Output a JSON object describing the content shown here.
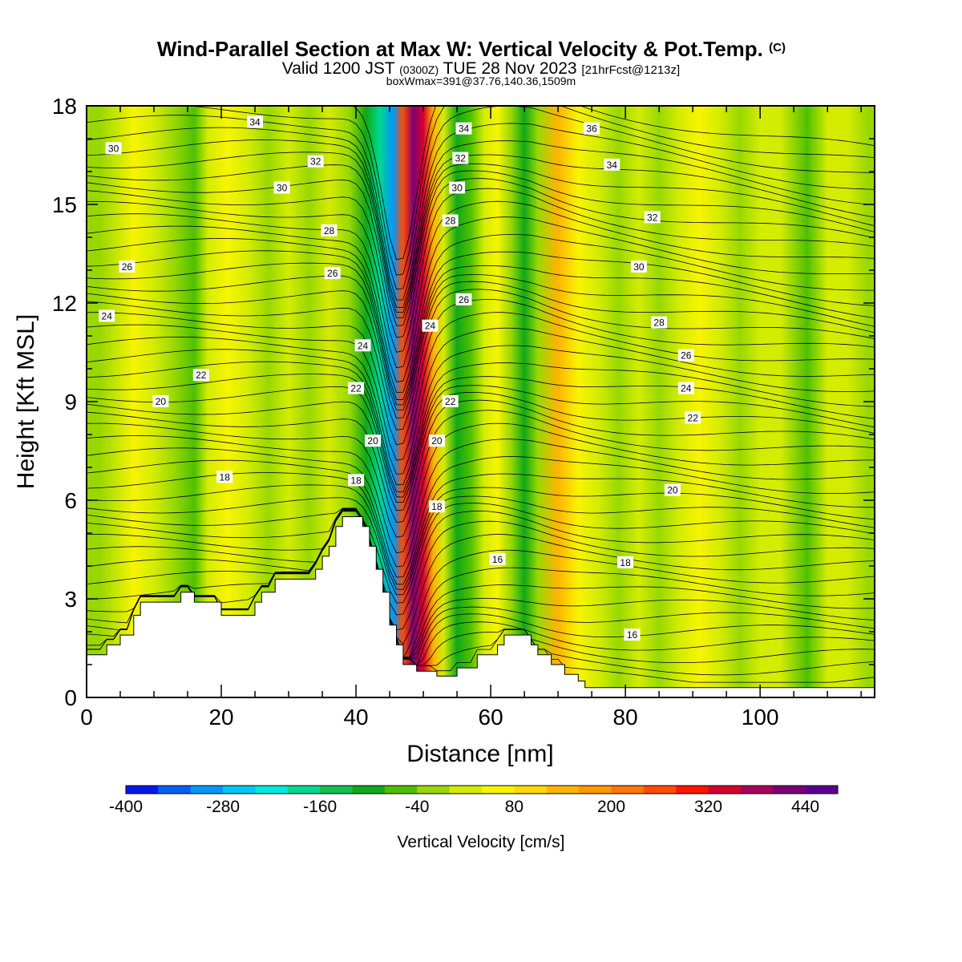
{
  "chart_data": {
    "type": "heatmap",
    "title": "Wind-Parallel Section at Max W: Vertical Velocity & Pot.Temp.",
    "title_mark": "(C)",
    "subtitle_prefix": "Valid 1200 JST",
    "subtitle_utc": "(0300Z)",
    "subtitle_date": "TUE 28 Nov 2023",
    "subtitle_fcst": "[21hrFcst@1213z]",
    "subtitle2": "boxWmax=391@37.76,140.36,1509m",
    "xlabel": "Distance [nm]",
    "ylabel": "Height [Kft MSL]",
    "xlim": [
      0,
      117
    ],
    "ylim": [
      0,
      18
    ],
    "xticks": [
      0,
      20,
      40,
      60,
      80,
      100
    ],
    "yticks": [
      0,
      3,
      6,
      9,
      12,
      15,
      18
    ],
    "colorbar": {
      "label": "Vertical Velocity [cm/s]",
      "min": -400,
      "step": 40,
      "tick_labels": [
        "-400",
        "-280",
        "-160",
        "-40",
        "80",
        "200",
        "320",
        "440"
      ],
      "tick_values": [
        -400,
        -280,
        -160,
        -40,
        80,
        200,
        320,
        440
      ],
      "colors": [
        "#0018ee",
        "#0060f6",
        "#0098f8",
        "#00c8f4",
        "#00eadc",
        "#00d890",
        "#10c050",
        "#10a818",
        "#4ec000",
        "#98d800",
        "#d4ec00",
        "#f8f400",
        "#ffd800",
        "#ffb400",
        "#ff9800",
        "#ff7800",
        "#ff4c00",
        "#ff1400",
        "#d8002c",
        "#a8005c",
        "#7c0074",
        "#5c0090"
      ]
    },
    "terrain_kft": [
      [
        0,
        1.3
      ],
      [
        3,
        1.3
      ],
      [
        3,
        1.6
      ],
      [
        5,
        1.6
      ],
      [
        5,
        1.9
      ],
      [
        7,
        1.9
      ],
      [
        7,
        2.5
      ],
      [
        8,
        2.5
      ],
      [
        8,
        2.9
      ],
      [
        14,
        2.9
      ],
      [
        14,
        3.2
      ],
      [
        16,
        3.2
      ],
      [
        16,
        2.9
      ],
      [
        20,
        2.9
      ],
      [
        20,
        2.5
      ],
      [
        25,
        2.5
      ],
      [
        25,
        2.9
      ],
      [
        26,
        2.9
      ],
      [
        26,
        3.2
      ],
      [
        28,
        3.2
      ],
      [
        28,
        3.6
      ],
      [
        34,
        3.6
      ],
      [
        34,
        3.9
      ],
      [
        35,
        3.9
      ],
      [
        35,
        4.3
      ],
      [
        36,
        4.3
      ],
      [
        36,
        4.6
      ],
      [
        37,
        4.6
      ],
      [
        37,
        5.2
      ],
      [
        38,
        5.2
      ],
      [
        38,
        5.5
      ],
      [
        41,
        5.5
      ],
      [
        41,
        5.2
      ],
      [
        42,
        5.2
      ],
      [
        42,
        4.6
      ],
      [
        43,
        4.6
      ],
      [
        43,
        3.9
      ],
      [
        44,
        3.9
      ],
      [
        44,
        3.2
      ],
      [
        45,
        3.2
      ],
      [
        45,
        2.2
      ],
      [
        46,
        2.2
      ],
      [
        46,
        1.6
      ],
      [
        47,
        1.6
      ],
      [
        47,
        1.0
      ],
      [
        49,
        1.0
      ],
      [
        49,
        0.8
      ],
      [
        52,
        0.8
      ],
      [
        52,
        0.65
      ],
      [
        55,
        0.65
      ],
      [
        55,
        0.9
      ],
      [
        58,
        0.9
      ],
      [
        58,
        1.3
      ],
      [
        61,
        1.3
      ],
      [
        61,
        1.6
      ],
      [
        62,
        1.6
      ],
      [
        62,
        1.9
      ],
      [
        66,
        1.9
      ],
      [
        66,
        1.6
      ],
      [
        67,
        1.6
      ],
      [
        67,
        1.3
      ],
      [
        69,
        1.3
      ],
      [
        69,
        1.0
      ],
      [
        71,
        1.0
      ],
      [
        71,
        0.7
      ],
      [
        73,
        0.7
      ],
      [
        73,
        0.5
      ],
      [
        74,
        0.5
      ],
      [
        74,
        0.3
      ],
      [
        117,
        0.3
      ]
    ],
    "w_bands": [
      {
        "x": 2,
        "w": -20
      },
      {
        "x": 7,
        "w": 70
      },
      {
        "x": 10,
        "w": 30
      },
      {
        "x": 13,
        "w": -20
      },
      {
        "x": 16,
        "w": -50
      },
      {
        "x": 18,
        "w": 10
      },
      {
        "x": 21,
        "w": 40
      },
      {
        "x": 24,
        "w": 10
      },
      {
        "x": 27,
        "w": -40
      },
      {
        "x": 30,
        "w": 10
      },
      {
        "x": 33,
        "w": -30
      },
      {
        "x": 36,
        "w": 20
      },
      {
        "x": 39,
        "w": -20
      },
      {
        "x": 41.5,
        "w": -100
      },
      {
        "x": 43.5,
        "w": -200
      },
      {
        "x": 45.5,
        "w": -310
      },
      {
        "x": 47,
        "w": 250
      },
      {
        "x": 48.5,
        "w": 420
      },
      {
        "x": 50,
        "w": 330
      },
      {
        "x": 51.5,
        "w": 140
      },
      {
        "x": 53,
        "w": 20
      },
      {
        "x": 55,
        "w": -110
      },
      {
        "x": 57,
        "w": -60
      },
      {
        "x": 59,
        "w": 20
      },
      {
        "x": 61,
        "w": 60
      },
      {
        "x": 63,
        "w": -20
      },
      {
        "x": 65,
        "w": -90
      },
      {
        "x": 67,
        "w": -20
      },
      {
        "x": 70,
        "w": 130
      },
      {
        "x": 73,
        "w": 70
      },
      {
        "x": 76,
        "w": 10
      },
      {
        "x": 79,
        "w": -30
      },
      {
        "x": 82,
        "w": 20
      },
      {
        "x": 85,
        "w": -40
      },
      {
        "x": 88,
        "w": 20
      },
      {
        "x": 91,
        "w": 40
      },
      {
        "x": 94,
        "w": 0
      },
      {
        "x": 97,
        "w": -30
      },
      {
        "x": 100,
        "w": 0
      },
      {
        "x": 103,
        "w": 10
      },
      {
        "x": 107,
        "w": -60
      },
      {
        "x": 110,
        "w": 10
      },
      {
        "x": 113,
        "w": 20
      },
      {
        "x": 116,
        "w": -10
      }
    ],
    "isentrope_labels": [
      {
        "text": "34",
        "x": 25,
        "y": 17.5
      },
      {
        "text": "30",
        "x": 4,
        "y": 16.7
      },
      {
        "text": "32",
        "x": 34,
        "y": 16.3
      },
      {
        "text": "30",
        "x": 29,
        "y": 15.5
      },
      {
        "text": "28",
        "x": 36,
        "y": 14.2
      },
      {
        "text": "26",
        "x": 6,
        "y": 13.1
      },
      {
        "text": "26",
        "x": 36.5,
        "y": 12.9
      },
      {
        "text": "24",
        "x": 3,
        "y": 11.6
      },
      {
        "text": "24",
        "x": 41,
        "y": 10.7
      },
      {
        "text": "22",
        "x": 17,
        "y": 9.8
      },
      {
        "text": "22",
        "x": 40,
        "y": 9.4
      },
      {
        "text": "20",
        "x": 11,
        "y": 9.0
      },
      {
        "text": "20",
        "x": 42.5,
        "y": 7.8
      },
      {
        "text": "18",
        "x": 20.5,
        "y": 6.7
      },
      {
        "text": "18",
        "x": 40,
        "y": 6.6
      },
      {
        "text": "34",
        "x": 56,
        "y": 17.3
      },
      {
        "text": "32",
        "x": 55.5,
        "y": 16.4
      },
      {
        "text": "30",
        "x": 55,
        "y": 15.5
      },
      {
        "text": "28",
        "x": 54,
        "y": 14.5
      },
      {
        "text": "26",
        "x": 56,
        "y": 12.1
      },
      {
        "text": "24",
        "x": 51,
        "y": 11.3
      },
      {
        "text": "22",
        "x": 54,
        "y": 9.0
      },
      {
        "text": "20",
        "x": 52,
        "y": 7.8
      },
      {
        "text": "18",
        "x": 52,
        "y": 5.8
      },
      {
        "text": "16",
        "x": 61,
        "y": 4.2
      },
      {
        "text": "36",
        "x": 75,
        "y": 17.3
      },
      {
        "text": "34",
        "x": 78,
        "y": 16.2
      },
      {
        "text": "32",
        "x": 84,
        "y": 14.6
      },
      {
        "text": "30",
        "x": 82,
        "y": 13.1
      },
      {
        "text": "28",
        "x": 85,
        "y": 11.4
      },
      {
        "text": "26",
        "x": 89,
        "y": 10.4
      },
      {
        "text": "24",
        "x": 89,
        "y": 9.4
      },
      {
        "text": "22",
        "x": 90,
        "y": 8.5
      },
      {
        "text": "20",
        "x": 87,
        "y": 6.3
      },
      {
        "text": "18",
        "x": 80,
        "y": 4.1
      },
      {
        "text": "16",
        "x": 81,
        "y": 1.9
      }
    ]
  }
}
